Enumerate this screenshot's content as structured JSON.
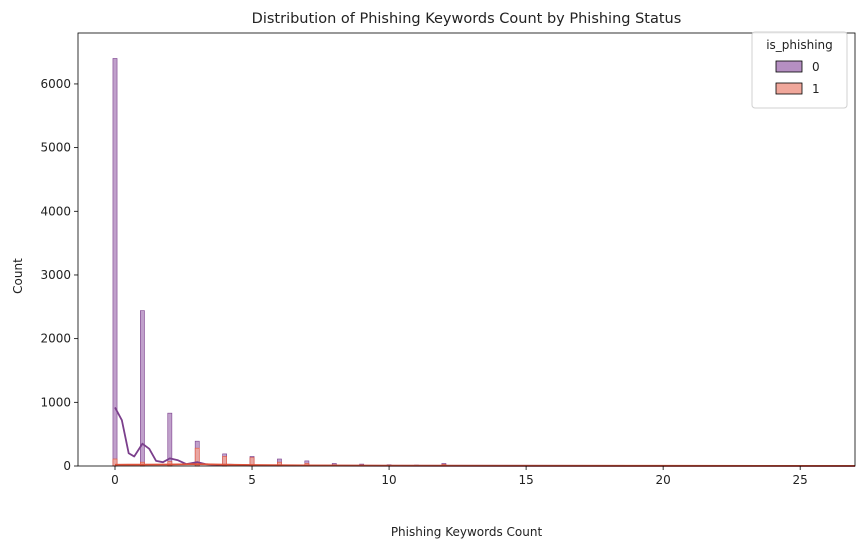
{
  "chart_data": {
    "type": "bar",
    "title": "Distribution of Phishing Keywords Count by Phishing Status",
    "xlabel": "Phishing Keywords Count",
    "ylabel": "Count",
    "xlim": [
      -1.35,
      27.0
    ],
    "ylim": [
      0,
      6800
    ],
    "x_ticks": [
      0,
      5,
      10,
      15,
      20,
      25
    ],
    "y_ticks": [
      0,
      1000,
      2000,
      3000,
      4000,
      5000,
      6000
    ],
    "grid": false,
    "legend": {
      "title": "is_phishing",
      "placement": "top-right"
    },
    "bin_width": 0.15,
    "series": [
      {
        "name": "0",
        "color": "#7b3f8c",
        "fill": "#b58fc2",
        "bins": [
          {
            "x": 0,
            "y": 6400
          },
          {
            "x": 1,
            "y": 2440
          },
          {
            "x": 2,
            "y": 830
          },
          {
            "x": 3,
            "y": 390
          },
          {
            "x": 4,
            "y": 190
          },
          {
            "x": 5,
            "y": 150
          },
          {
            "x": 6,
            "y": 110
          },
          {
            "x": 7,
            "y": 80
          },
          {
            "x": 8,
            "y": 40
          },
          {
            "x": 9,
            "y": 30
          },
          {
            "x": 10,
            "y": 20
          },
          {
            "x": 11,
            "y": 15
          },
          {
            "x": 12,
            "y": 40
          },
          {
            "x": 13,
            "y": 10
          },
          {
            "x": 14,
            "y": 8
          }
        ],
        "kde": [
          {
            "x": 0,
            "y": 920
          },
          {
            "x": 0.25,
            "y": 720
          },
          {
            "x": 0.5,
            "y": 200
          },
          {
            "x": 0.7,
            "y": 150
          },
          {
            "x": 1,
            "y": 350
          },
          {
            "x": 1.25,
            "y": 270
          },
          {
            "x": 1.5,
            "y": 80
          },
          {
            "x": 1.75,
            "y": 60
          },
          {
            "x": 2,
            "y": 120
          },
          {
            "x": 2.3,
            "y": 90
          },
          {
            "x": 2.6,
            "y": 30
          },
          {
            "x": 3,
            "y": 60
          },
          {
            "x": 3.3,
            "y": 30
          },
          {
            "x": 3.7,
            "y": 15
          },
          {
            "x": 4.2,
            "y": 20
          },
          {
            "x": 5,
            "y": 10
          },
          {
            "x": 6,
            "y": 8
          },
          {
            "x": 10,
            "y": 4
          },
          {
            "x": 15,
            "y": 3
          },
          {
            "x": 20,
            "y": 2
          },
          {
            "x": 27,
            "y": 1
          }
        ]
      },
      {
        "name": "1",
        "color": "#e0533a",
        "fill": "#f0a79b",
        "bins": [
          {
            "x": 0,
            "y": 110
          },
          {
            "x": 1,
            "y": 60
          },
          {
            "x": 2,
            "y": 70
          },
          {
            "x": 3,
            "y": 280
          },
          {
            "x": 4,
            "y": 150
          },
          {
            "x": 5,
            "y": 130
          },
          {
            "x": 6,
            "y": 60
          },
          {
            "x": 7,
            "y": 40
          },
          {
            "x": 8,
            "y": 20
          },
          {
            "x": 9,
            "y": 15
          },
          {
            "x": 10,
            "y": 10
          },
          {
            "x": 12,
            "y": 25
          }
        ],
        "kde": [
          {
            "x": 0,
            "y": 20
          },
          {
            "x": 1,
            "y": 22
          },
          {
            "x": 2,
            "y": 24
          },
          {
            "x": 3,
            "y": 30
          },
          {
            "x": 4,
            "y": 22
          },
          {
            "x": 5,
            "y": 16
          },
          {
            "x": 7,
            "y": 10
          },
          {
            "x": 10,
            "y": 6
          },
          {
            "x": 15,
            "y": 4
          },
          {
            "x": 20,
            "y": 3
          },
          {
            "x": 27,
            "y": 2
          }
        ]
      }
    ]
  }
}
